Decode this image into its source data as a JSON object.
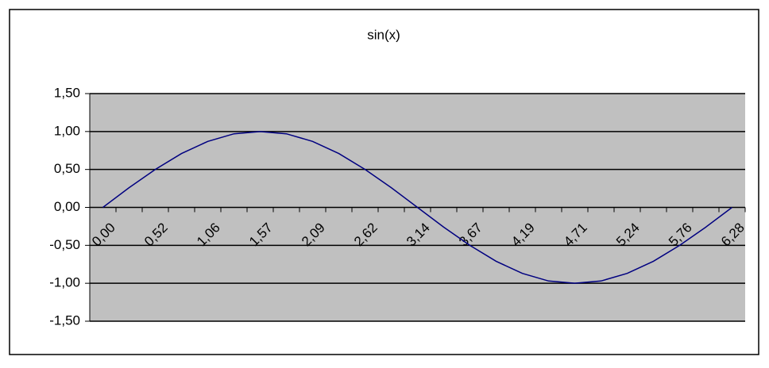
{
  "chart_data": {
    "type": "line",
    "title": "sin(x)",
    "categories": [
      "0,00",
      null,
      "0,52",
      null,
      "1,06",
      null,
      "1,57",
      null,
      "2,09",
      null,
      "2,62",
      null,
      "3,14",
      null,
      "3,67",
      null,
      "4,19",
      null,
      "4,71",
      null,
      "5,24",
      null,
      "5,76",
      null,
      "6,28"
    ],
    "series": [
      {
        "name": "sin(x)",
        "color": "#000080",
        "values": [
          0,
          0.26,
          0.5,
          0.71,
          0.87,
          0.97,
          1,
          0.97,
          0.87,
          0.71,
          0.5,
          0.26,
          0,
          -0.26,
          -0.5,
          -0.71,
          -0.87,
          -0.97,
          -1,
          -0.97,
          -0.87,
          -0.71,
          -0.5,
          -0.26,
          0
        ]
      }
    ],
    "ylim": [
      -1.5,
      1.5
    ],
    "yticks": [
      {
        "value": -1.5,
        "label": "-1,50"
      },
      {
        "value": -1,
        "label": "-1,00"
      },
      {
        "value": -0.5,
        "label": "-0,50"
      },
      {
        "value": 0,
        "label": "0,00"
      },
      {
        "value": 0.5,
        "label": "0,50"
      },
      {
        "value": 1,
        "label": "1,00"
      },
      {
        "value": 1.5,
        "label": "1,50"
      }
    ],
    "grid": true
  }
}
